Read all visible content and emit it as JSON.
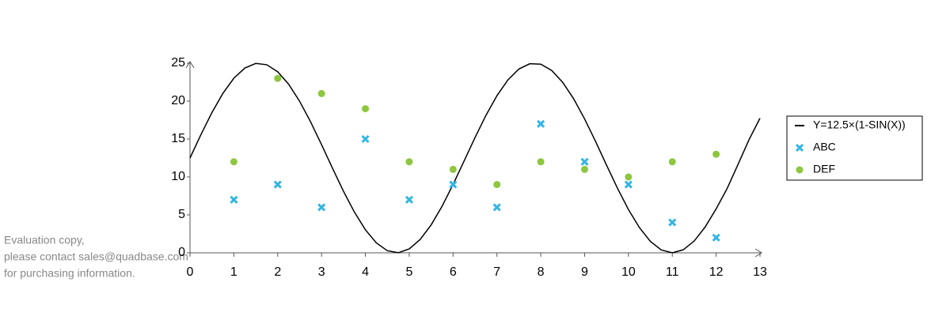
{
  "chart_data": {
    "type": "scatter",
    "xlim": [
      0,
      13
    ],
    "xticks": [
      0,
      1,
      2,
      3,
      4,
      5,
      6,
      7,
      8,
      9,
      10,
      11,
      12,
      13
    ],
    "ylim": [
      0,
      25
    ],
    "yticks": [
      0,
      5,
      10,
      15,
      20,
      25
    ],
    "grid": false,
    "legend": "right",
    "series": [
      {
        "name": "Y=12.5×(1-SIN(X))",
        "type": "line",
        "color": "#000000",
        "x": [
          0,
          0.25,
          0.5,
          0.75,
          1,
          1.25,
          1.5,
          1.75,
          2,
          2.25,
          2.5,
          2.75,
          3,
          3.25,
          3.5,
          3.75,
          4,
          4.25,
          4.5,
          4.75,
          5,
          5.25,
          5.5,
          5.75,
          6,
          6.25,
          6.5,
          6.75,
          7,
          7.25,
          7.5,
          7.75,
          8,
          8.25,
          8.5,
          8.75,
          9,
          9.25,
          9.5,
          9.75,
          10,
          10.25,
          10.5,
          10.75,
          11,
          11.25,
          11.5,
          11.75,
          12,
          12.25,
          12.5,
          12.75,
          13
        ],
        "values": [
          12.5,
          15.59,
          18.49,
          21.02,
          23.02,
          24.36,
          24.97,
          24.8,
          23.87,
          22.23,
          19.98,
          17.27,
          14.26,
          11.15,
          8.12,
          5.36,
          3.04,
          1.31,
          0.28,
          0.01,
          0.51,
          1.76,
          3.68,
          6.15,
          9.01,
          12.09,
          15.19,
          18.13,
          20.71,
          22.79,
          24.23,
          24.93,
          24.87,
          24.04,
          22.48,
          20.31,
          17.65,
          14.68,
          11.56,
          8.51,
          5.7,
          3.32,
          1.5,
          0.37,
          0,
          0.4,
          1.56,
          3.41,
          5.79,
          8.47,
          11.67,
          14.92,
          17.75
        ]
      },
      {
        "name": "ABC",
        "type": "scatter",
        "marker": "x",
        "color": "#33b5e5",
        "x": [
          1,
          2,
          3,
          4,
          5,
          6,
          7,
          8,
          9,
          10,
          11,
          12
        ],
        "values": [
          7,
          9,
          6,
          15,
          7,
          9,
          6,
          17,
          12,
          9,
          4,
          2
        ]
      },
      {
        "name": "DEF",
        "type": "scatter",
        "marker": "circle",
        "color": "#8dc63f",
        "x": [
          1,
          2,
          3,
          4,
          5,
          6,
          7,
          8,
          9,
          10,
          11,
          12
        ],
        "values": [
          12,
          23,
          21,
          19,
          12,
          11,
          9,
          12,
          11,
          10,
          12,
          13
        ]
      }
    ]
  },
  "watermark": [
    "Evaluation copy,",
    "please contact sales@quadbase.com",
    "for purchasing information."
  ]
}
